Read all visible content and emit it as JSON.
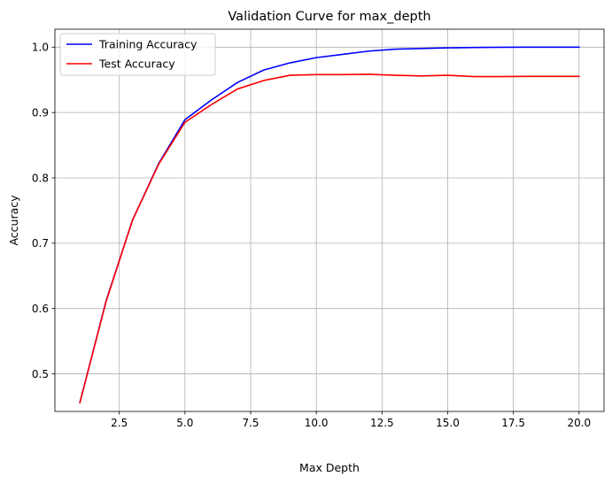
{
  "chart_data": {
    "type": "line",
    "title": "Validation Curve for max_depth",
    "xlabel": "Max Depth",
    "ylabel": "Accuracy",
    "xlim": [
      0.05,
      20.95
    ],
    "ylim": [
      0.4425,
      1.0275
    ],
    "x_ticks": [
      2.5,
      5.0,
      7.5,
      10.0,
      12.5,
      15.0,
      17.5,
      20.0
    ],
    "x_tick_labels": [
      "2.5",
      "5.0",
      "7.5",
      "10.0",
      "12.5",
      "15.0",
      "17.5",
      "20.0"
    ],
    "y_ticks": [
      0.5,
      0.6,
      0.7,
      0.8,
      0.9,
      1.0
    ],
    "y_tick_labels": [
      "0.5",
      "0.6",
      "0.7",
      "0.8",
      "0.9",
      "1.0"
    ],
    "grid": true,
    "legend_position": "top-left",
    "x": [
      1,
      2,
      3,
      4,
      5,
      6,
      7,
      8,
      9,
      10,
      11,
      12,
      13,
      14,
      15,
      16,
      17,
      18,
      19,
      20
    ],
    "series": [
      {
        "name": "Training Accuracy",
        "color": "#0000ff",
        "values": [
          0.456,
          0.612,
          0.735,
          0.822,
          0.889,
          0.919,
          0.946,
          0.965,
          0.976,
          0.984,
          0.989,
          0.994,
          0.997,
          0.998,
          0.999,
          0.9995,
          0.9998,
          1.0,
          1.0,
          1.0
        ]
      },
      {
        "name": "Test Accuracy",
        "color": "#ff0000",
        "values": [
          0.456,
          0.611,
          0.735,
          0.821,
          0.885,
          0.912,
          0.936,
          0.949,
          0.957,
          0.958,
          0.958,
          0.9585,
          0.957,
          0.956,
          0.957,
          0.955,
          0.955,
          0.9553,
          0.9553,
          0.9553
        ]
      }
    ]
  }
}
